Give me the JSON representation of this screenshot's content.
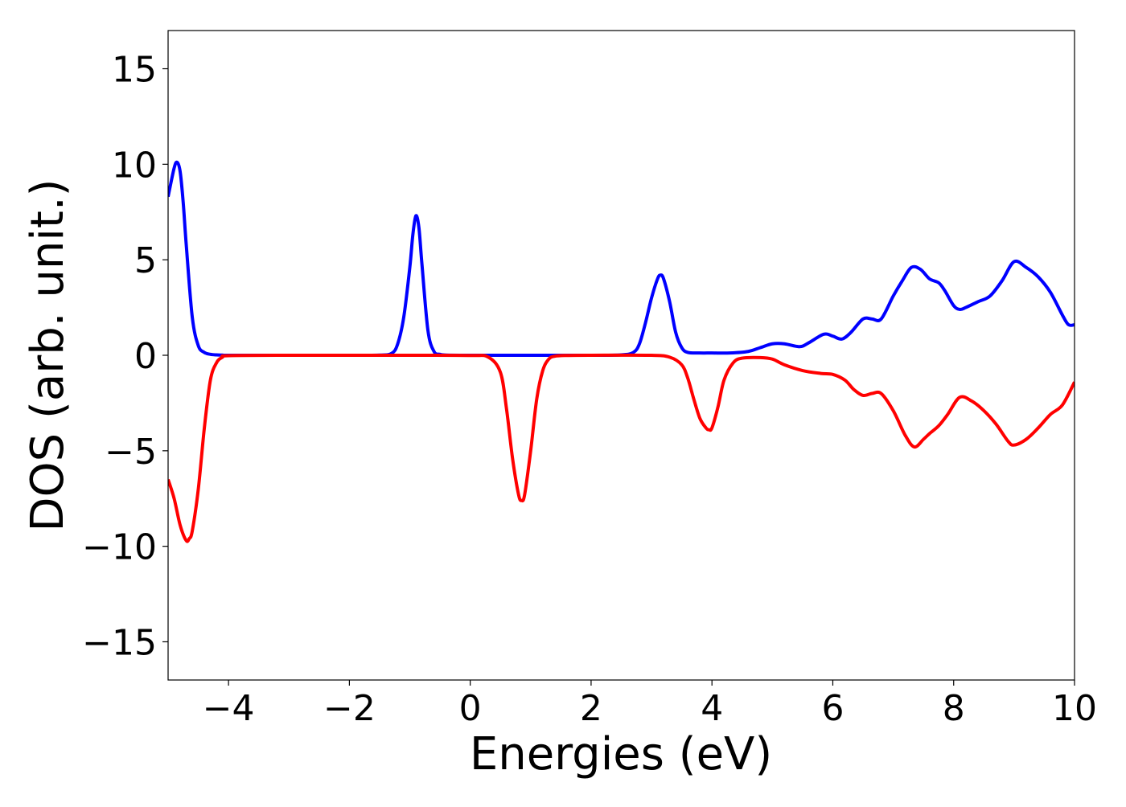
{
  "chart_data": {
    "type": "line",
    "title": "",
    "xlabel": "Energies (eV)",
    "ylabel": "DOS (arb. unit.)",
    "xlim": [
      -5,
      10
    ],
    "ylim": [
      -17,
      17
    ],
    "xticks": [
      -4,
      -2,
      0,
      2,
      4,
      6,
      8,
      10
    ],
    "xtick_labels": [
      "−4",
      "−2",
      "0",
      "2",
      "4",
      "6",
      "8",
      "10"
    ],
    "yticks": [
      -15,
      -10,
      -5,
      0,
      5,
      10,
      15
    ],
    "ytick_labels": [
      "−15",
      "−10",
      "−5",
      "0",
      "5",
      "10",
      "15"
    ],
    "grid": false,
    "legend": false,
    "series": [
      {
        "color": "#0000ff",
        "x": [
          -5.0,
          -4.9,
          -4.85,
          -4.8,
          -4.75,
          -4.7,
          -4.6,
          -4.5,
          -4.4,
          -4.3,
          -4.2,
          -4.1,
          -4.0,
          -3.0,
          -2.0,
          -1.5,
          -1.3,
          -1.2,
          -1.1,
          -1.0,
          -0.95,
          -0.9,
          -0.85,
          -0.8,
          -0.7,
          -0.6,
          -0.5,
          -0.4,
          0.0,
          1.0,
          2.0,
          2.5,
          2.7,
          2.8,
          2.9,
          3.0,
          3.1,
          3.15,
          3.2,
          3.3,
          3.4,
          3.5,
          3.6,
          3.8,
          4.0,
          4.3,
          4.6,
          4.8,
          5.0,
          5.2,
          5.45,
          5.6,
          5.85,
          6.0,
          6.15,
          6.3,
          6.5,
          6.65,
          6.8,
          7.0,
          7.15,
          7.3,
          7.45,
          7.6,
          7.75,
          7.85,
          8.0,
          8.1,
          8.2,
          8.4,
          8.6,
          8.8,
          9.0,
          9.2,
          9.4,
          9.6,
          9.8,
          9.9,
          10.0
        ],
        "y": [
          8.3,
          9.8,
          10.1,
          9.6,
          8.0,
          5.8,
          2.0,
          0.5,
          0.15,
          0.05,
          0.02,
          0.01,
          0.0,
          0.0,
          0.0,
          0.01,
          0.1,
          0.6,
          2.0,
          4.6,
          6.3,
          7.3,
          6.7,
          4.8,
          1.3,
          0.2,
          0.05,
          0.01,
          0.0,
          0.0,
          0.0,
          0.02,
          0.15,
          0.6,
          1.7,
          3.0,
          4.0,
          4.2,
          4.0,
          2.8,
          1.2,
          0.4,
          0.15,
          0.12,
          0.12,
          0.12,
          0.2,
          0.4,
          0.6,
          0.6,
          0.45,
          0.65,
          1.1,
          1.0,
          0.85,
          1.2,
          1.9,
          1.9,
          1.9,
          3.1,
          3.9,
          4.6,
          4.5,
          4.0,
          3.8,
          3.4,
          2.6,
          2.4,
          2.5,
          2.8,
          3.1,
          3.9,
          4.9,
          4.6,
          4.1,
          3.3,
          2.1,
          1.6,
          1.6
        ]
      },
      {
        "color": "#ff0000",
        "x": [
          -5.0,
          -4.9,
          -4.8,
          -4.7,
          -4.65,
          -4.6,
          -4.5,
          -4.4,
          -4.3,
          -4.2,
          -4.1,
          -4.0,
          -3.0,
          -2.0,
          -1.0,
          0.0,
          0.3,
          0.5,
          0.6,
          0.7,
          0.8,
          0.85,
          0.9,
          1.0,
          1.1,
          1.2,
          1.3,
          1.4,
          1.6,
          2.0,
          3.0,
          3.3,
          3.5,
          3.6,
          3.7,
          3.8,
          3.9,
          3.95,
          4.0,
          4.1,
          4.2,
          4.35,
          4.5,
          4.8,
          5.0,
          5.2,
          5.5,
          5.8,
          6.0,
          6.2,
          6.35,
          6.5,
          6.65,
          6.8,
          7.0,
          7.2,
          7.35,
          7.5,
          7.6,
          7.75,
          7.9,
          8.1,
          8.3,
          8.5,
          8.7,
          8.9,
          9.0,
          9.2,
          9.4,
          9.6,
          9.8,
          10.0
        ],
        "y": [
          -6.5,
          -7.5,
          -8.9,
          -9.7,
          -9.6,
          -9.2,
          -7.0,
          -3.8,
          -1.3,
          -0.4,
          -0.1,
          -0.02,
          0.0,
          0.0,
          0.0,
          -0.01,
          -0.1,
          -0.9,
          -2.8,
          -5.4,
          -7.3,
          -7.6,
          -7.3,
          -5.0,
          -2.3,
          -0.8,
          -0.2,
          -0.05,
          -0.01,
          0.0,
          0.0,
          -0.1,
          -0.5,
          -1.2,
          -2.3,
          -3.3,
          -3.8,
          -3.9,
          -3.8,
          -2.7,
          -1.3,
          -0.4,
          -0.15,
          -0.12,
          -0.2,
          -0.5,
          -0.8,
          -0.95,
          -1.0,
          -1.3,
          -1.8,
          -2.1,
          -2.0,
          -2.0,
          -2.9,
          -4.2,
          -4.8,
          -4.4,
          -4.1,
          -3.7,
          -3.1,
          -2.2,
          -2.4,
          -2.9,
          -3.6,
          -4.5,
          -4.7,
          -4.4,
          -3.8,
          -3.1,
          -2.6,
          -1.4
        ]
      }
    ]
  }
}
